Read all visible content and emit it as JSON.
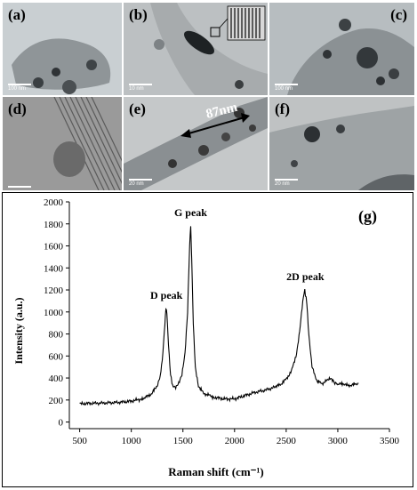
{
  "panels": [
    {
      "label": "(a)",
      "scale": "100 nm",
      "bg": "#c9cfd2"
    },
    {
      "label": "(b)",
      "scale": "10 nm",
      "bg": "#bcc0c2"
    },
    {
      "label": "(c)",
      "scale": "100 nm",
      "bg": "#b7bdc0"
    },
    {
      "label": "(d)",
      "scale": "",
      "bg": "#9a9a9a"
    },
    {
      "label": "(e)",
      "scale": "20 nm",
      "bg": "#c5c8c9",
      "measure": "87nm"
    },
    {
      "label": "(f)",
      "scale": "20 nm",
      "bg": "#bfc2c3"
    }
  ],
  "chart_data": {
    "type": "line",
    "panel_label": "(g)",
    "xlabel": "Raman shift (cm⁻¹)",
    "ylabel": "Intensity (a.u.)",
    "xlim": [
      400,
      3500
    ],
    "ylim": [
      -60,
      2000
    ],
    "x_ticks": [
      500,
      1000,
      1500,
      2000,
      2500,
      3000,
      3500
    ],
    "y_ticks": [
      0,
      200,
      400,
      600,
      800,
      1000,
      1200,
      1400,
      1600,
      1800,
      2000
    ],
    "grid": false,
    "annotations": [
      {
        "text": "D peak",
        "x": 1340,
        "y": 1120
      },
      {
        "text": "G peak",
        "x": 1575,
        "y": 1870
      },
      {
        "text": "2D peak",
        "x": 2685,
        "y": 1290
      }
    ],
    "series": [
      {
        "color": "#000000",
        "x": [
          500,
          600,
          700,
          800,
          900,
          1000,
          1100,
          1150,
          1200,
          1250,
          1280,
          1300,
          1320,
          1335,
          1345,
          1360,
          1380,
          1400,
          1430,
          1460,
          1490,
          1520,
          1545,
          1565,
          1575,
          1585,
          1600,
          1620,
          1650,
          1700,
          1750,
          1800,
          1900,
          2000,
          2100,
          2200,
          2300,
          2400,
          2450,
          2500,
          2550,
          2600,
          2630,
          2660,
          2680,
          2700,
          2720,
          2750,
          2800,
          2850,
          2900,
          2930,
          2960,
          3000,
          3050,
          3100,
          3150,
          3200
        ],
        "y": [
          165,
          170,
          172,
          175,
          180,
          190,
          210,
          230,
          260,
          330,
          420,
          560,
          820,
          1030,
          980,
          700,
          430,
          330,
          320,
          360,
          430,
          620,
          1000,
          1600,
          1780,
          1500,
          900,
          500,
          330,
          260,
          245,
          225,
          210,
          210,
          240,
          270,
          290,
          320,
          345,
          390,
          460,
          620,
          830,
          1100,
          1200,
          1080,
          780,
          500,
          370,
          350,
          380,
          390,
          365,
          340,
          350,
          330,
          340,
          350
        ]
      }
    ]
  }
}
